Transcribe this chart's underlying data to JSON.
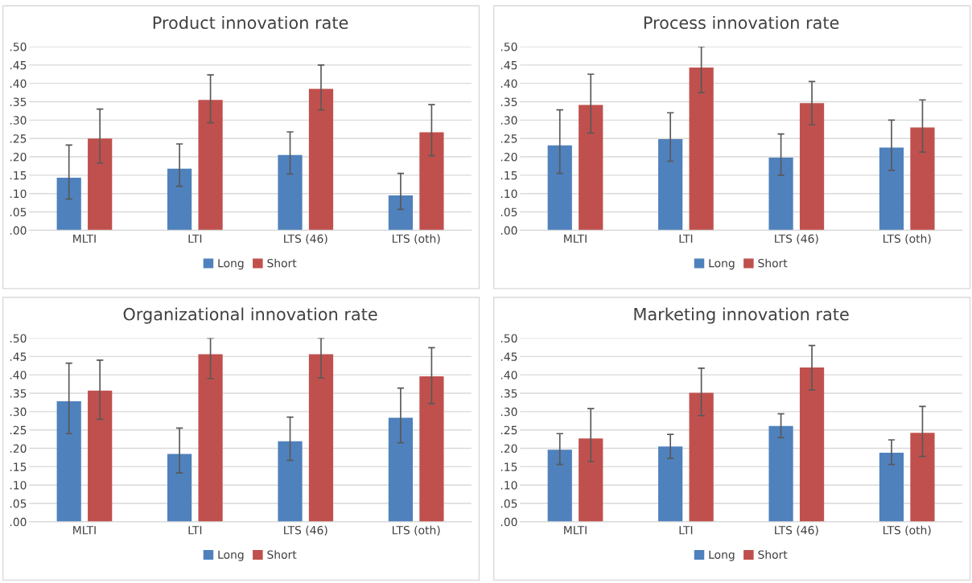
{
  "chart_data": [
    {
      "type": "bar",
      "title": "Product innovation rate",
      "categories": [
        "MLTI",
        "LTI",
        "LTS (46)",
        "LTS (oth)"
      ],
      "ylim": [
        0,
        0.5
      ],
      "yticks": [
        {
          "value": 0,
          "label": ".00"
        },
        {
          "value": 0.05,
          "label": ".05"
        },
        {
          "value": 0.1,
          "label": ".10"
        },
        {
          "value": 0.15,
          "label": ".15"
        },
        {
          "value": 0.2,
          "label": ".20"
        },
        {
          "value": 0.25,
          "label": ".25"
        },
        {
          "value": 0.3,
          "label": ".30"
        },
        {
          "value": 0.35,
          "label": ".35"
        },
        {
          "value": 0.4,
          "label": ".40"
        },
        {
          "value": 0.45,
          "label": ".45"
        },
        {
          "value": 0.5,
          "label": ".50"
        }
      ],
      "grid": "y",
      "legend": "bottom",
      "series": [
        {
          "name": "Long",
          "color": "#4f81bd",
          "values": [
            0.143,
            0.168,
            0.205,
            0.095
          ],
          "errors": [
            [
              0.085,
              0.232
            ],
            [
              0.12,
              0.235
            ],
            [
              0.153,
              0.268
            ],
            [
              0.057,
              0.155
            ]
          ]
        },
        {
          "name": "Short",
          "color": "#c0504d",
          "values": [
            0.25,
            0.355,
            0.385,
            0.267
          ],
          "errors": [
            [
              0.183,
              0.33
            ],
            [
              0.293,
              0.423
            ],
            [
              0.328,
              0.45
            ],
            [
              0.203,
              0.342
            ]
          ]
        }
      ]
    },
    {
      "type": "bar",
      "title": "Process innovation rate",
      "categories": [
        "MLTI",
        "LTI",
        "LTS (46)",
        "LTS (oth)"
      ],
      "ylim": [
        0,
        0.5
      ],
      "yticks": [
        {
          "value": 0,
          "label": ".00"
        },
        {
          "value": 0.05,
          "label": ".05"
        },
        {
          "value": 0.1,
          "label": ".10"
        },
        {
          "value": 0.15,
          "label": ".15"
        },
        {
          "value": 0.2,
          "label": ".20"
        },
        {
          "value": 0.25,
          "label": ".25"
        },
        {
          "value": 0.3,
          "label": ".30"
        },
        {
          "value": 0.35,
          "label": ".35"
        },
        {
          "value": 0.4,
          "label": ".40"
        },
        {
          "value": 0.45,
          "label": ".45"
        },
        {
          "value": 0.5,
          "label": ".50"
        }
      ],
      "grid": "y",
      "legend": "bottom",
      "series": [
        {
          "name": "Long",
          "color": "#4f81bd",
          "values": [
            0.231,
            0.248,
            0.198,
            0.225
          ],
          "errors": [
            [
              0.155,
              0.328
            ],
            [
              0.188,
              0.32
            ],
            [
              0.15,
              0.262
            ],
            [
              0.163,
              0.3
            ]
          ]
        },
        {
          "name": "Short",
          "color": "#c0504d",
          "values": [
            0.341,
            0.443,
            0.346,
            0.28
          ],
          "errors": [
            [
              0.265,
              0.425
            ],
            [
              0.375,
              0.5
            ],
            [
              0.287,
              0.405
            ],
            [
              0.213,
              0.355
            ]
          ]
        }
      ]
    },
    {
      "type": "bar",
      "title": "Organizational innovation rate",
      "categories": [
        "MLTI",
        "LTI",
        "LTS (46)",
        "LTS (oth)"
      ],
      "ylim": [
        0,
        0.5
      ],
      "yticks": [
        {
          "value": 0,
          "label": ".00"
        },
        {
          "value": 0.05,
          "label": ".05"
        },
        {
          "value": 0.1,
          "label": ".10"
        },
        {
          "value": 0.15,
          "label": ".15"
        },
        {
          "value": 0.2,
          "label": ".20"
        },
        {
          "value": 0.25,
          "label": ".25"
        },
        {
          "value": 0.3,
          "label": ".30"
        },
        {
          "value": 0.35,
          "label": ".35"
        },
        {
          "value": 0.4,
          "label": ".40"
        },
        {
          "value": 0.45,
          "label": ".45"
        },
        {
          "value": 0.5,
          "label": ".50"
        }
      ],
      "grid": "y",
      "legend": "bottom",
      "series": [
        {
          "name": "Long",
          "color": "#4f81bd",
          "values": [
            0.328,
            0.185,
            0.219,
            0.283
          ],
          "errors": [
            [
              0.24,
              0.432
            ],
            [
              0.133,
              0.255
            ],
            [
              0.167,
              0.285
            ],
            [
              0.215,
              0.364
            ]
          ]
        },
        {
          "name": "Short",
          "color": "#c0504d",
          "values": [
            0.357,
            0.456,
            0.456,
            0.396
          ],
          "errors": [
            [
              0.279,
              0.44
            ],
            [
              0.39,
              0.5
            ],
            [
              0.392,
              0.5
            ],
            [
              0.322,
              0.474
            ]
          ]
        }
      ]
    },
    {
      "type": "bar",
      "title": "Marketing innovation rate",
      "categories": [
        "MLTI",
        "LTI",
        "LTS (46)",
        "LTS (oth)"
      ],
      "ylim": [
        0,
        0.5
      ],
      "yticks": [
        {
          "value": 0,
          "label": ".00"
        },
        {
          "value": 0.05,
          "label": ".05"
        },
        {
          "value": 0.1,
          "label": ".10"
        },
        {
          "value": 0.15,
          "label": ".15"
        },
        {
          "value": 0.2,
          "label": ".20"
        },
        {
          "value": 0.25,
          "label": ".25"
        },
        {
          "value": 0.3,
          "label": ".30"
        },
        {
          "value": 0.35,
          "label": ".35"
        },
        {
          "value": 0.4,
          "label": ".40"
        },
        {
          "value": 0.45,
          "label": ".45"
        },
        {
          "value": 0.5,
          "label": ".50"
        }
      ],
      "grid": "y",
      "legend": "bottom",
      "series": [
        {
          "name": "Long",
          "color": "#4f81bd",
          "values": [
            0.196,
            0.205,
            0.261,
            0.188
          ],
          "errors": [
            [
              0.156,
              0.24
            ],
            [
              0.173,
              0.238
            ],
            [
              0.229,
              0.294
            ],
            [
              0.156,
              0.223
            ]
          ]
        },
        {
          "name": "Short",
          "color": "#c0504d",
          "values": [
            0.227,
            0.351,
            0.42,
            0.242
          ],
          "errors": [
            [
              0.164,
              0.308
            ],
            [
              0.289,
              0.418
            ],
            [
              0.359,
              0.48
            ],
            [
              0.178,
              0.314
            ]
          ]
        }
      ]
    }
  ]
}
